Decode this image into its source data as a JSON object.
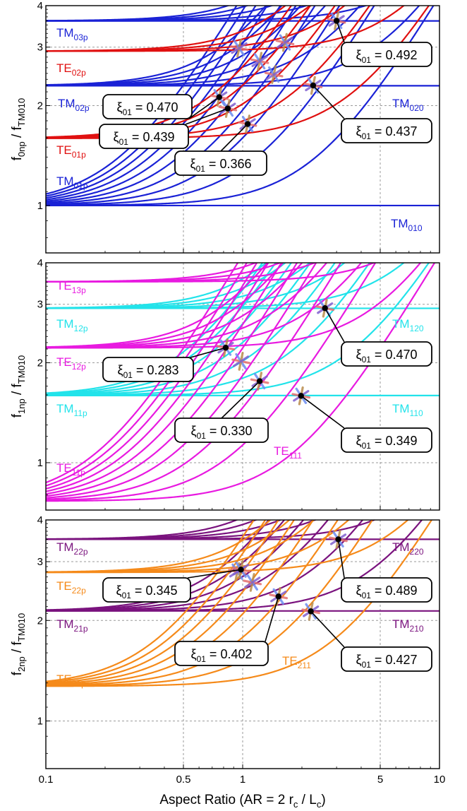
{
  "colors": {
    "TM_p0": "#1a22d6",
    "TE_p0": "#e01010",
    "TM_p1": "#22e3ea",
    "TE_p1": "#e81ae0",
    "TM_p2": "#7a137e",
    "TE_p2": "#f58a1a"
  },
  "x_axis": {
    "title_pre": "Aspect Ratio (AR = 2 r",
    "title_sub1": "c",
    "title_mid": " / L",
    "title_sub2": "c",
    "title_post": ")",
    "tick_labels": [
      "0.1",
      "0.5",
      "1",
      "5",
      "10"
    ],
    "scale": "log",
    "range": [
      0.1,
      10
    ]
  },
  "chart_data": [
    {
      "type": "line",
      "panel": "p0",
      "scale": "log-log",
      "xlim": [
        0.1,
        10
      ],
      "ylim": [
        0.72,
        4
      ],
      "ylabel_main": "f",
      "ylabel_sub": "0np",
      "ylabel_den": "f",
      "ylabel_den_sub": "TM010",
      "y_tick_labels": [
        "1",
        "2",
        "3",
        "4"
      ],
      "y_ticks": [
        1,
        2,
        3,
        4
      ],
      "tm_mode": {
        "base": 1.0,
        "family": "TM_p0"
      },
      "te_mode": {
        "base": 1.593,
        "family": "TE_p0"
      },
      "series": [
        {
          "family": "TM_p0",
          "c": 1.0,
          "ps": [
            0,
            1,
            2,
            3,
            4,
            5,
            6,
            7,
            8,
            9,
            10
          ]
        },
        {
          "family": "TM_p0",
          "c": 2.2954,
          "ps": [
            0,
            1,
            2,
            3,
            4,
            5,
            6
          ]
        },
        {
          "family": "TM_p0",
          "c": 3.5985,
          "ps": [
            0,
            1,
            2,
            3,
            4,
            5
          ]
        },
        {
          "family": "TE_p0",
          "c": 1.5933,
          "ps": [
            1,
            2,
            3,
            4,
            5
          ]
        },
        {
          "family": "TE_p0",
          "c": 2.9173,
          "ps": [
            1,
            2,
            3,
            4
          ]
        }
      ],
      "mode_labels": [
        {
          "mode": "TM",
          "sub": "03p",
          "family": "TM_p0"
        },
        {
          "mode": "TE",
          "sub": "02p",
          "family": "TE_p0"
        },
        {
          "mode": "TM",
          "sub": "02p",
          "family": "TM_p0"
        },
        {
          "mode": "TE",
          "sub": "01p",
          "family": "TE_p0"
        },
        {
          "mode": "TM",
          "sub": "01p",
          "family": "TM_p0"
        },
        {
          "mode": "TM",
          "sub": "020",
          "family": "TM_p0"
        },
        {
          "mode": "TM",
          "sub": "010",
          "family": "TM_p0"
        }
      ],
      "crossings": [
        {
          "x": 3.0,
          "y": 3.6,
          "xi": "0.492"
        },
        {
          "x": 2.28,
          "y": 2.3,
          "xi": "0.437"
        },
        {
          "x": 0.76,
          "y": 2.12,
          "xi": "0.470"
        },
        {
          "x": 0.84,
          "y": 1.96,
          "xi": "0.439"
        },
        {
          "x": 1.06,
          "y": 1.76,
          "xi": "0.366"
        }
      ],
      "asterisks": [
        {
          "x": 0.96,
          "y": 2.98
        },
        {
          "x": 1.64,
          "y": 3.1
        },
        {
          "x": 1.22,
          "y": 2.72
        },
        {
          "x": 1.44,
          "y": 2.48
        }
      ]
    },
    {
      "type": "line",
      "panel": "p1",
      "scale": "log-log",
      "xlim": [
        0.1,
        10
      ],
      "ylim": [
        0.72,
        4
      ],
      "ylabel_main": "f",
      "ylabel_sub": "1np",
      "ylabel_den": "f",
      "ylabel_den_sub": "TM010",
      "y_tick_labels": [
        "1",
        "2",
        "3",
        "4"
      ],
      "y_ticks": [
        1,
        2,
        3,
        4
      ],
      "series": [
        {
          "family": "TM_p1",
          "c": 1.5933,
          "ps": [
            0,
            1,
            2,
            3,
            4,
            5,
            6,
            7
          ]
        },
        {
          "family": "TM_p1",
          "c": 2.9173,
          "ps": [
            0,
            1,
            2,
            3,
            4,
            5
          ]
        },
        {
          "family": "TE_p1",
          "c": 0.7655,
          "ps": [
            1,
            2,
            3,
            4,
            5,
            6,
            7,
            8,
            9,
            10
          ]
        },
        {
          "family": "TE_p1",
          "c": 2.2164,
          "ps": [
            1,
            2,
            3,
            4,
            5,
            6
          ]
        },
        {
          "family": "TE_p1",
          "c": 3.5058,
          "ps": [
            1,
            2,
            3,
            4
          ]
        }
      ],
      "mode_labels": [
        {
          "mode": "TE",
          "sub": "13p",
          "family": "TE_p1"
        },
        {
          "mode": "TM",
          "sub": "12p",
          "family": "TM_p1"
        },
        {
          "mode": "TE",
          "sub": "12p",
          "family": "TE_p1"
        },
        {
          "mode": "TM",
          "sub": "11p",
          "family": "TM_p1"
        },
        {
          "mode": "TE",
          "sub": "11p",
          "family": "TE_p1"
        },
        {
          "mode": "TM",
          "sub": "120",
          "family": "TM_p1"
        },
        {
          "mode": "TM",
          "sub": "110",
          "family": "TM_p1"
        },
        {
          "mode": "TE",
          "sub": "111",
          "family": "TE_p1"
        }
      ],
      "crossings": [
        {
          "x": 2.62,
          "y": 2.92,
          "xi": "0.470"
        },
        {
          "x": 0.82,
          "y": 2.22,
          "xi": "0.283"
        },
        {
          "x": 1.22,
          "y": 1.76,
          "xi": "0.330"
        },
        {
          "x": 1.98,
          "y": 1.59,
          "xi": "0.349"
        }
      ],
      "asterisks": [
        {
          "x": 0.98,
          "y": 2.02
        }
      ]
    },
    {
      "type": "line",
      "panel": "p2",
      "scale": "log-log",
      "xlim": [
        0.1,
        10
      ],
      "ylim": [
        0.72,
        4
      ],
      "ylabel_main": "f",
      "ylabel_sub": "2np",
      "ylabel_den": "f",
      "ylabel_den_sub": "TM010",
      "y_tick_labels": [
        "1",
        "2",
        "3",
        "4"
      ],
      "y_ticks": [
        1,
        2,
        3,
        4
      ],
      "series": [
        {
          "family": "TM_p2",
          "c": 2.1355,
          "ps": [
            0,
            1,
            2,
            3,
            4,
            5,
            6
          ]
        },
        {
          "family": "TM_p2",
          "c": 3.5006,
          "ps": [
            0,
            1,
            2,
            3,
            4,
            5
          ]
        },
        {
          "family": "TE_p2",
          "c": 1.2705,
          "ps": [
            1,
            2,
            3,
            4,
            5,
            6,
            7,
            8
          ]
        },
        {
          "family": "TE_p2",
          "c": 2.7863,
          "ps": [
            1,
            2,
            3,
            4,
            5
          ]
        }
      ],
      "mode_labels": [
        {
          "mode": "TM",
          "sub": "22p",
          "family": "TM_p2"
        },
        {
          "mode": "TE",
          "sub": "22p",
          "family": "TE_p2"
        },
        {
          "mode": "TM",
          "sub": "21p",
          "family": "TM_p2"
        },
        {
          "mode": "TE",
          "sub": "21p",
          "family": "TE_p2"
        },
        {
          "mode": "TM",
          "sub": "220",
          "family": "TM_p2"
        },
        {
          "mode": "TM",
          "sub": "210",
          "family": "TM_p2"
        },
        {
          "mode": "TE",
          "sub": "211",
          "family": "TE_p2"
        }
      ],
      "crossings": [
        {
          "x": 3.06,
          "y": 3.5,
          "xi": "0.489"
        },
        {
          "x": 0.98,
          "y": 2.84,
          "xi": "0.345"
        },
        {
          "x": 1.52,
          "y": 2.36,
          "xi": "0.402"
        },
        {
          "x": 2.22,
          "y": 2.13,
          "xi": "0.427"
        }
      ],
      "asterisks": [
        {
          "x": 0.94,
          "y": 2.8
        },
        {
          "x": 1.12,
          "y": 2.6
        }
      ]
    }
  ]
}
